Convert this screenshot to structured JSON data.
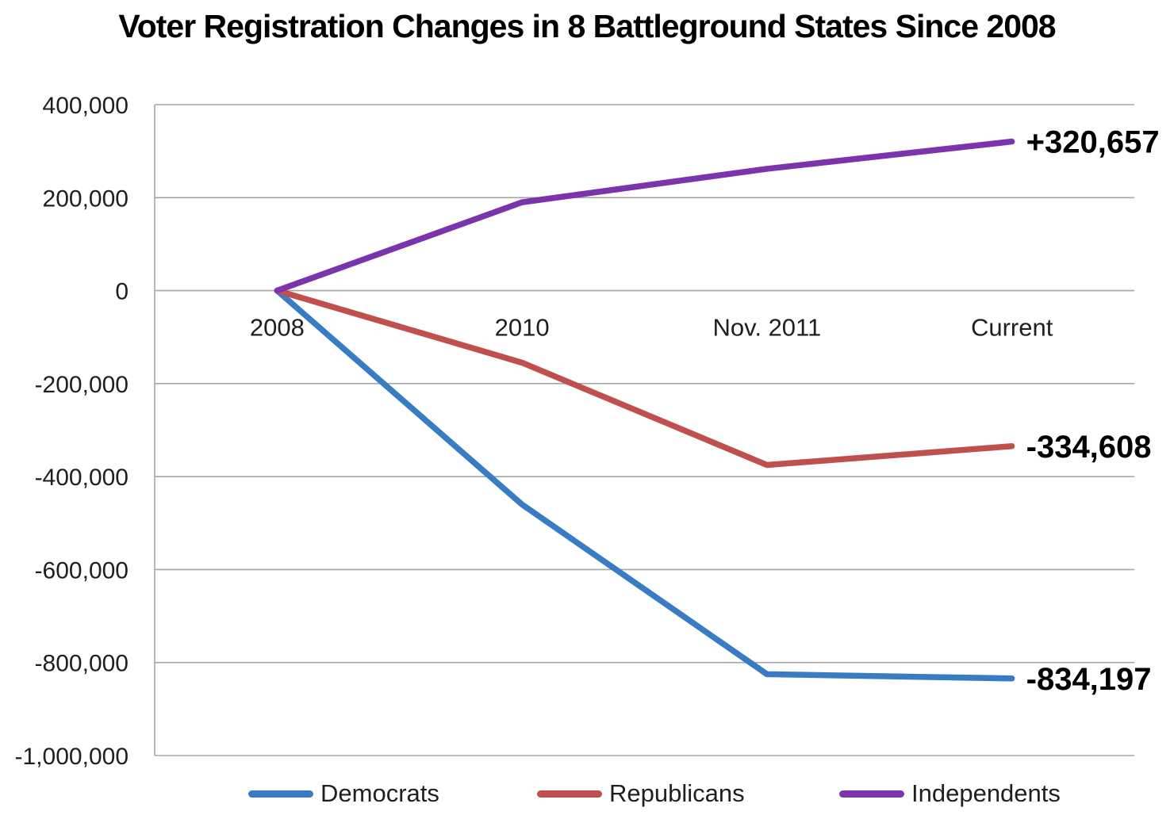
{
  "title": "Voter Registration Changes in 8 Battleground States Since 2008",
  "chart_data": {
    "type": "line",
    "categories": [
      "2008",
      "2010",
      "Nov. 2011",
      "Current"
    ],
    "series": [
      {
        "name": "Democrats",
        "color": "#3A7CC3",
        "values": [
          0,
          -460000,
          -825000,
          -834197
        ],
        "end_label": "-834,197"
      },
      {
        "name": "Republicans",
        "color": "#C0504D",
        "values": [
          0,
          -155000,
          -375000,
          -334608
        ],
        "end_label": "-334,608"
      },
      {
        "name": "Independents",
        "color": "#7A35AC",
        "values": [
          0,
          190000,
          262000,
          320657
        ],
        "end_label": "+320,657"
      }
    ],
    "ylim": [
      -1000000,
      400000
    ],
    "ytick_step": 200000,
    "ytick_labels": [
      "400,000",
      "200,000",
      "0",
      "-200,000",
      "-400,000",
      "-600,000",
      "-800,000",
      "-1,000,000"
    ],
    "grid": true,
    "grid_color": "#A6A6A6",
    "legend_position": "bottom"
  }
}
